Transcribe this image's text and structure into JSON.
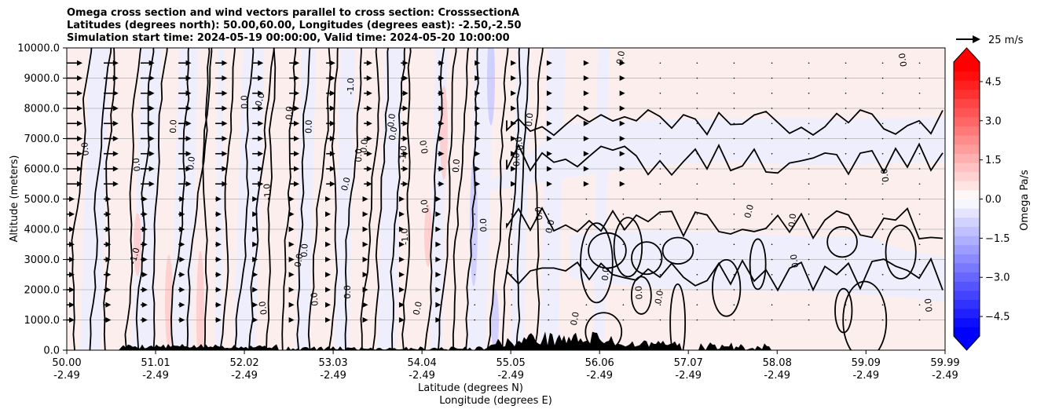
{
  "chart_data": {
    "type": "heatmap",
    "title_lines": [
      "Omega cross section and wind vectors parallel to cross section: CrosssectionA",
      "Latitudes (degrees north): 50.00,60.00, Longitudes (degrees east): -2.50,-2.50",
      "Simulation start time: 2024-05-19 00:00:00, Valid time: 2024-05-20 10:00:00"
    ],
    "ylabel": "Altitude (meters)",
    "xlabel_lines": [
      "Latitude (degrees N)",
      "Longitude (degrees E)"
    ],
    "ylim": [
      0,
      10000
    ],
    "xlim": [
      50.0,
      59.99
    ],
    "y_ticks": [
      {
        "value": 0,
        "label": "0.0"
      },
      {
        "value": 1000,
        "label": "1000.0"
      },
      {
        "value": 2000,
        "label": "2000.0"
      },
      {
        "value": 3000,
        "label": "3000.0"
      },
      {
        "value": 4000,
        "label": "4000.0"
      },
      {
        "value": 5000,
        "label": "5000.0"
      },
      {
        "value": 6000,
        "label": "6000.0"
      },
      {
        "value": 7000,
        "label": "7000.0"
      },
      {
        "value": 8000,
        "label": "8000.0"
      },
      {
        "value": 9000,
        "label": "9000.0"
      },
      {
        "value": 10000,
        "label": "10000.0"
      }
    ],
    "x_ticks": [
      {
        "value": 50.0,
        "lat": "50.00",
        "lon": "-2.49"
      },
      {
        "value": 51.01,
        "lat": "51.01",
        "lon": "-2.49"
      },
      {
        "value": 52.02,
        "lat": "52.02",
        "lon": "-2.49"
      },
      {
        "value": 53.03,
        "lat": "53.03",
        "lon": "-2.49"
      },
      {
        "value": 54.04,
        "lat": "54.04",
        "lon": "-2.49"
      },
      {
        "value": 55.05,
        "lat": "55.05",
        "lon": "-2.49"
      },
      {
        "value": 56.06,
        "lat": "56.06",
        "lon": "-2.49"
      },
      {
        "value": 57.07,
        "lat": "57.07",
        "lon": "-2.49"
      },
      {
        "value": 58.08,
        "lat": "58.08",
        "lon": "-2.49"
      },
      {
        "value": 59.09,
        "lat": "59.09",
        "lon": "-2.49"
      },
      {
        "value": 59.99,
        "lat": "59.99",
        "lon": "-2.49"
      }
    ],
    "grid": "horizontal",
    "colorbar": {
      "label": "Omega Pa/s",
      "range": [
        -5.25,
        5.25
      ],
      "extend": "both",
      "ticks": [
        {
          "value": 4.5,
          "label": "4.5"
        },
        {
          "value": 3.0,
          "label": "3.0"
        },
        {
          "value": 1.5,
          "label": "1.5"
        },
        {
          "value": 0.0,
          "label": "0.0"
        },
        {
          "value": -1.5,
          "label": "−1.5"
        },
        {
          "value": -3.0,
          "label": "−3.0"
        },
        {
          "value": -4.5,
          "label": "−4.5"
        }
      ]
    },
    "quiver_key": {
      "label": "25 m/s"
    },
    "contour_label": "0.0",
    "contour_label_neg": "-1.0",
    "colors": {
      "positive_light": "#fdeeee",
      "negative_light": "#eeeefd",
      "positive_mid": "#ffc8c8",
      "negative_mid": "#c8c8ff",
      "terrain": "#000000",
      "grid": "#b0b0b0"
    },
    "wind_vectors": {
      "columns_lat": [
        50.0,
        50.42,
        50.84,
        51.27,
        51.69,
        52.11,
        52.53,
        52.95,
        53.38,
        53.8,
        54.22,
        54.64,
        55.06,
        55.48,
        55.91,
        56.33,
        56.75,
        57.17,
        57.59,
        58.02,
        58.44,
        58.86,
        59.28,
        59.7
      ],
      "rows_alt": [
        9500,
        9000,
        8500,
        8000,
        7500,
        7000,
        6500,
        6000,
        5500,
        5000,
        4500,
        4000,
        3500,
        3000,
        2500,
        2000,
        1500,
        1000
      ],
      "notes": "arrow speed decreases from ~20 m/s near 50N to calm north of 57N"
    }
  }
}
